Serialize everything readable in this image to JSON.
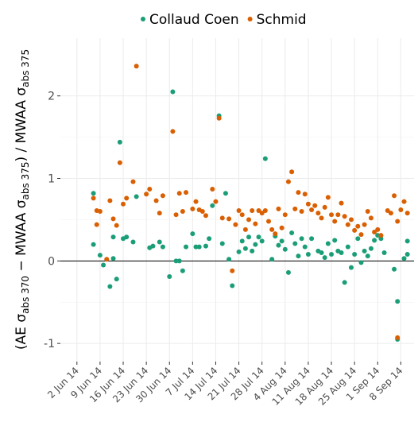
{
  "chart_data": {
    "type": "scatter",
    "ylabel": [
      "(AE σ",
      "abs 370",
      " − MWAA σ",
      "abs 375",
      ") / MWAA σ",
      "abs 375"
    ],
    "xlim": [
      "2014-05-28",
      "2014-09-12"
    ],
    "xticks": [
      {
        "value": "2014-06-02",
        "label": "2 Jun 14"
      },
      {
        "value": "2014-06-09",
        "label": "9 Jun 14"
      },
      {
        "value": "2014-06-16",
        "label": "16 Jun 14"
      },
      {
        "value": "2014-06-23",
        "label": "23 Jun 14"
      },
      {
        "value": "2014-06-30",
        "label": "30 Jun 14"
      },
      {
        "value": "2014-07-07",
        "label": "7 Jul 14"
      },
      {
        "value": "2014-07-14",
        "label": "14 Jul 14"
      },
      {
        "value": "2014-07-21",
        "label": "21 Jul 14"
      },
      {
        "value": "2014-07-28",
        "label": "28 Jul 14"
      },
      {
        "value": "2014-08-04",
        "label": "4 Aug 14"
      },
      {
        "value": "2014-08-11",
        "label": "11 Aug 14"
      },
      {
        "value": "2014-08-18",
        "label": "18 Aug 14"
      },
      {
        "value": "2014-08-25",
        "label": "25 Aug 14"
      },
      {
        "value": "2014-09-01",
        "label": "1 Sep 14"
      },
      {
        "value": "2014-09-08",
        "label": "8 Sep 14"
      }
    ],
    "ylim": [
      -1.22,
      2.7
    ],
    "yticks": [
      -1,
      0,
      1,
      2
    ],
    "grid": true,
    "hline": 0,
    "legend": "top",
    "series": [
      {
        "name": "Collaud Coen",
        "color": "#1b9e77",
        "x": [
          "2014-06-07",
          "2014-06-07",
          "2014-06-09",
          "2014-06-10",
          "2014-06-12",
          "2014-06-13",
          "2014-06-13",
          "2014-06-14",
          "2014-06-15",
          "2014-06-16",
          "2014-06-17",
          "2014-06-19",
          "2014-06-20",
          "2014-06-24",
          "2014-06-25",
          "2014-06-27",
          "2014-06-28",
          "2014-06-30",
          "2014-07-01",
          "2014-07-02",
          "2014-07-03",
          "2014-07-04",
          "2014-07-05",
          "2014-07-07",
          "2014-07-08",
          "2014-07-09",
          "2014-07-11",
          "2014-07-12",
          "2014-07-13",
          "2014-07-15",
          "2014-07-16",
          "2014-07-17",
          "2014-07-18",
          "2014-07-19",
          "2014-07-21",
          "2014-07-22",
          "2014-07-23",
          "2014-07-24",
          "2014-07-25",
          "2014-07-26",
          "2014-07-27",
          "2014-07-28",
          "2014-07-29",
          "2014-07-31",
          "2014-08-01",
          "2014-08-02",
          "2014-08-03",
          "2014-08-04",
          "2014-08-05",
          "2014-08-06",
          "2014-08-07",
          "2014-08-08",
          "2014-08-09",
          "2014-08-10",
          "2014-08-11",
          "2014-08-12",
          "2014-08-14",
          "2014-08-15",
          "2014-08-16",
          "2014-08-17",
          "2014-08-18",
          "2014-08-19",
          "2014-08-20",
          "2014-08-21",
          "2014-08-22",
          "2014-08-23",
          "2014-08-24",
          "2014-08-25",
          "2014-08-26",
          "2014-08-27",
          "2014-08-28",
          "2014-08-29",
          "2014-08-30",
          "2014-08-31",
          "2014-09-01",
          "2014-09-02",
          "2014-09-03",
          "2014-09-06",
          "2014-09-07",
          "2014-09-07",
          "2014-09-09",
          "2014-09-10",
          "2014-09-10"
        ],
        "values": [
          0.82,
          0.2,
          0.07,
          -0.05,
          -0.31,
          0.29,
          0.03,
          -0.22,
          1.44,
          0.27,
          0.29,
          0.23,
          0.78,
          0.16,
          0.18,
          0.23,
          0.17,
          -0.19,
          2.05,
          0.0,
          0.0,
          -0.12,
          0.17,
          0.33,
          0.17,
          0.17,
          0.18,
          0.27,
          0.67,
          1.76,
          0.21,
          0.82,
          0.02,
          -0.3,
          0.11,
          0.24,
          0.15,
          0.29,
          0.12,
          0.2,
          0.29,
          0.24,
          1.24,
          0.02,
          0.3,
          0.19,
          0.24,
          0.14,
          -0.14,
          0.34,
          0.21,
          0.06,
          0.27,
          0.17,
          0.08,
          0.27,
          0.12,
          0.1,
          0.04,
          0.21,
          0.08,
          0.25,
          0.12,
          0.1,
          -0.26,
          0.17,
          -0.08,
          0.08,
          0.27,
          -0.02,
          0.12,
          0.06,
          0.15,
          0.25,
          0.31,
          0.27,
          0.1,
          -0.1,
          -0.49,
          -0.95,
          0.03,
          0.08,
          0.24
        ]
      },
      {
        "name": "Schmid",
        "color": "#d95f02",
        "x": [
          "2014-06-07",
          "2014-06-08",
          "2014-06-09",
          "2014-06-08",
          "2014-06-11",
          "2014-06-12",
          "2014-06-13",
          "2014-06-14",
          "2014-06-15",
          "2014-06-16",
          "2014-06-17",
          "2014-06-19",
          "2014-06-20",
          "2014-06-23",
          "2014-06-24",
          "2014-06-26",
          "2014-06-27",
          "2014-06-28",
          "2014-07-01",
          "2014-07-02",
          "2014-07-03",
          "2014-07-04",
          "2014-07-05",
          "2014-07-07",
          "2014-07-08",
          "2014-07-09",
          "2014-07-10",
          "2014-07-11",
          "2014-07-13",
          "2014-07-14",
          "2014-07-15",
          "2014-07-16",
          "2014-07-18",
          "2014-07-19",
          "2014-07-20",
          "2014-07-21",
          "2014-07-22",
          "2014-07-23",
          "2014-07-24",
          "2014-07-25",
          "2014-07-26",
          "2014-07-27",
          "2014-07-28",
          "2014-07-29",
          "2014-07-30",
          "2014-07-31",
          "2014-08-01",
          "2014-08-02",
          "2014-08-03",
          "2014-08-04",
          "2014-08-05",
          "2014-08-06",
          "2014-08-07",
          "2014-08-08",
          "2014-08-09",
          "2014-08-10",
          "2014-08-11",
          "2014-08-12",
          "2014-08-13",
          "2014-08-14",
          "2014-08-15",
          "2014-08-16",
          "2014-08-17",
          "2014-08-18",
          "2014-08-19",
          "2014-08-20",
          "2014-08-21",
          "2014-08-22",
          "2014-08-23",
          "2014-08-24",
          "2014-08-25",
          "2014-08-26",
          "2014-08-27",
          "2014-08-28",
          "2014-08-29",
          "2014-08-30",
          "2014-08-31",
          "2014-09-01",
          "2014-09-02",
          "2014-09-04",
          "2014-09-05",
          "2014-09-06",
          "2014-09-07",
          "2014-09-08",
          "2014-09-09",
          "2014-09-10",
          "2014-09-07"
        ],
        "values": [
          0.76,
          0.61,
          0.6,
          0.44,
          0.02,
          0.73,
          0.51,
          0.43,
          1.19,
          0.69,
          0.76,
          0.96,
          2.36,
          0.81,
          0.87,
          0.73,
          0.58,
          0.79,
          1.57,
          0.56,
          0.82,
          0.6,
          0.83,
          0.63,
          0.72,
          0.62,
          0.6,
          0.55,
          0.87,
          0.72,
          1.73,
          0.52,
          0.51,
          -0.12,
          0.44,
          0.61,
          0.56,
          0.38,
          0.5,
          0.61,
          0.45,
          0.61,
          0.58,
          0.61,
          0.48,
          0.38,
          0.33,
          0.63,
          0.4,
          0.56,
          0.96,
          1.08,
          0.63,
          0.83,
          0.6,
          0.81,
          0.69,
          0.62,
          0.67,
          0.58,
          0.52,
          0.65,
          0.77,
          0.56,
          0.48,
          0.56,
          0.7,
          0.54,
          0.44,
          0.5,
          0.37,
          0.42,
          0.32,
          0.44,
          0.6,
          0.52,
          0.35,
          0.38,
          0.31,
          0.61,
          0.58,
          0.79,
          0.48,
          0.62,
          0.72,
          0.58,
          -0.93
        ]
      }
    ]
  }
}
